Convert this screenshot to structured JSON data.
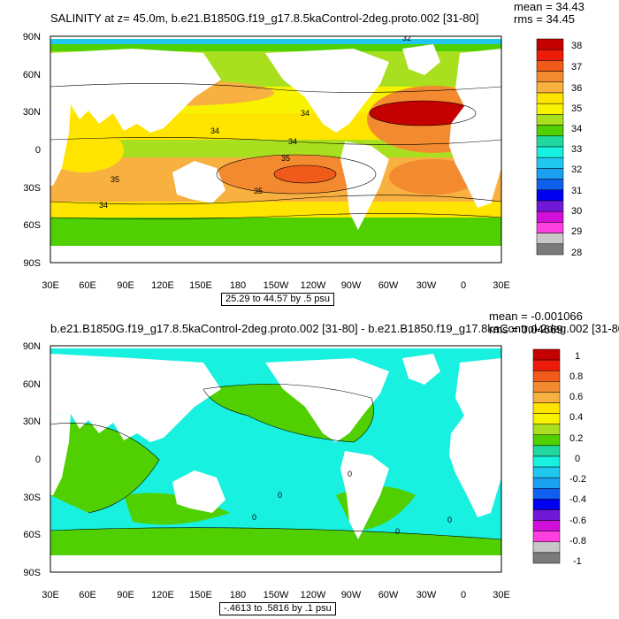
{
  "panels": [
    {
      "title": "SALINITY at z=  45.0m, b.e21.B1850G.f19_g17.8.5kaControl-2deg.proto.002 [31-80]",
      "mean": "mean = 34.43",
      "rms": "rms = 34.45",
      "info": "25.29 to 44.57 by .5 psu",
      "lat_labels": [
        "90N",
        "60N",
        "30N",
        "0",
        "30S",
        "60S",
        "90S"
      ],
      "lon_labels": [
        "30E",
        "60E",
        "90E",
        "120E",
        "150E",
        "180",
        "150W",
        "120W",
        "90W",
        "60W",
        "30W",
        "0",
        "30E"
      ],
      "contour_labels": [
        "32",
        "34",
        "34",
        "35",
        "34",
        "35",
        "34",
        "35"
      ],
      "colorbar": {
        "labels": [
          "38",
          "37",
          "36",
          "35",
          "34",
          "33",
          "32",
          "31",
          "30",
          "29",
          "28"
        ],
        "colors": [
          "#c40000",
          "#ee1a0a",
          "#f05a1a",
          "#f48a30",
          "#f8b040",
          "#ffe400",
          "#f8f200",
          "#a8e020",
          "#50d000",
          "#20d8a0",
          "#18f0e0",
          "#20c8f0",
          "#1aa0f0",
          "#1060f0",
          "#0000f0",
          "#7018d8",
          "#d010d8",
          "#ff40e0",
          "#c8c8c8",
          "#7a7a7a"
        ]
      }
    },
    {
      "title": "b.e21.B1850G.f19_g17.8.5kaControl-2deg.proto.002 [31-80] - b.e21.B1850.f19_g17.8kaControl-2deg.002 [31-80]",
      "mean": "mean = -0.001066",
      "rms": "rms = 0.04669",
      "info": "-.4613 to .5816 by .1 psu",
      "lat_labels": [
        "90N",
        "60N",
        "30N",
        "0",
        "30S",
        "60S",
        "90S"
      ],
      "lon_labels": [
        "30E",
        "60E",
        "90E",
        "120E",
        "150E",
        "180",
        "150W",
        "120W",
        "90W",
        "60W",
        "30W",
        "0",
        "30E"
      ],
      "contour_labels": [
        "0",
        "0",
        "0",
        "0",
        "0"
      ],
      "colorbar": {
        "labels": [
          "1",
          "0.8",
          "0.6",
          "0.4",
          "0.2",
          "0",
          "-0.2",
          "-0.4",
          "-0.6",
          "-0.8",
          "-1"
        ],
        "colors": [
          "#c40000",
          "#ee1a0a",
          "#f05a1a",
          "#f48a30",
          "#f8b040",
          "#ffe400",
          "#f8f200",
          "#a8e020",
          "#50d000",
          "#20d8a0",
          "#18f0e0",
          "#20c8f0",
          "#1aa0f0",
          "#1060f0",
          "#0000f0",
          "#7018d8",
          "#d010d8",
          "#ff40e0",
          "#c8c8c8",
          "#7a7a7a"
        ]
      }
    }
  ],
  "chart_data": [
    {
      "type": "heatmap",
      "title": "SALINITY at z=  45.0m, b.e21.B1850G.f19_g17.8.5kaControl-2deg.proto.002 [31-80]",
      "xlabel": "",
      "ylabel": "",
      "x_ticks": [
        "30E",
        "60E",
        "90E",
        "120E",
        "150E",
        "180",
        "150W",
        "120W",
        "90W",
        "60W",
        "30W",
        "0",
        "30E"
      ],
      "y_ticks": [
        "90N",
        "60N",
        "30N",
        "0",
        "30S",
        "60S",
        "90S"
      ],
      "levels": [
        28,
        29,
        30,
        31,
        32,
        33,
        34,
        35,
        36,
        37,
        38
      ],
      "level_labels": [
        "28",
        "29",
        "30",
        "31",
        "32",
        "33",
        "34",
        "35",
        "36",
        "37",
        "38"
      ],
      "mean": 34.43,
      "rms": 34.45,
      "range": [
        25.29,
        44.57
      ],
      "interval": 0.5,
      "units": "psu"
    },
    {
      "type": "heatmap",
      "title": "b.e21.B1850G.f19_g17.8.5kaControl-2deg.proto.002 [31-80] - b.e21.B1850.f19_g17.8kaControl-2deg.002 [31-80]",
      "xlabel": "",
      "ylabel": "",
      "x_ticks": [
        "30E",
        "60E",
        "90E",
        "120E",
        "150E",
        "180",
        "150W",
        "120W",
        "90W",
        "60W",
        "30W",
        "0",
        "30E"
      ],
      "y_ticks": [
        "90N",
        "60N",
        "30N",
        "0",
        "30S",
        "60S",
        "90S"
      ],
      "levels": [
        -1,
        -0.8,
        -0.6,
        -0.4,
        -0.2,
        0,
        0.2,
        0.4,
        0.6,
        0.8,
        1
      ],
      "level_labels": [
        "-1",
        "-0.8",
        "-0.6",
        "-0.4",
        "-0.2",
        "0",
        "0.2",
        "0.4",
        "0.6",
        "0.8",
        "1"
      ],
      "mean": -0.001066,
      "rms": 0.04669,
      "range": [
        -0.4613,
        0.5816
      ],
      "interval": 0.1,
      "units": "psu"
    }
  ]
}
